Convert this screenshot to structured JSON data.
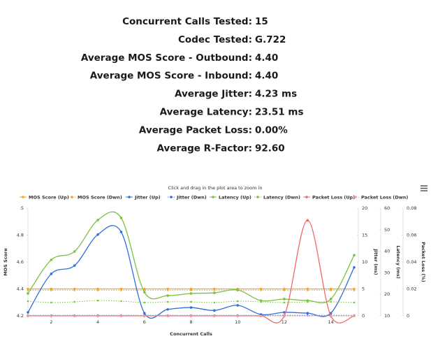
{
  "summary": [
    {
      "label": "Concurrent Calls Tested:",
      "value": "15"
    },
    {
      "label": "Codec Tested:",
      "value": "G.722"
    },
    {
      "label": "Average MOS Score - Outbound:",
      "value": "4.40"
    },
    {
      "label": "Average MOS Score - Inbound:",
      "value": "4.40"
    },
    {
      "label": "Average Jitter:",
      "value": "4.23 ms"
    },
    {
      "label": "Average Latency:",
      "value": "23.51 ms"
    },
    {
      "label": "Average Packet Loss:",
      "value": "0.00%"
    },
    {
      "label": "Average R-Factor:",
      "value": "92.60"
    }
  ],
  "chart_data": {
    "type": "line",
    "subtitle": "Click and drag in the plot area to zoom in",
    "xlabel": "Concurrent Calls",
    "x": [
      1,
      2,
      3,
      4,
      5,
      6,
      7,
      8,
      9,
      10,
      11,
      12,
      13,
      14,
      15
    ],
    "xlim": [
      1,
      15
    ],
    "xticks": [
      2,
      4,
      6,
      8,
      10,
      12,
      14
    ],
    "ylabel": "MOS Score",
    "ylim": [
      4.2,
      5
    ],
    "yticks": [
      4.2,
      4.4,
      4.6,
      4.8,
      5
    ],
    "y2label": "Jitter (ms)",
    "y2lim": [
      0,
      20
    ],
    "y2ticks": [
      0,
      5,
      10,
      15,
      20
    ],
    "y3label": "Latency (ms)",
    "y3lim": [
      10,
      60
    ],
    "y3ticks": [
      10,
      20,
      30,
      40,
      50,
      60
    ],
    "y4label": "Packet Loss (%)",
    "y4lim": [
      0,
      0.08
    ],
    "y4ticks": [
      0,
      0.02,
      0.04,
      0.06,
      0.08
    ],
    "grid": false,
    "legend": "top",
    "series": [
      {
        "name": "MOS Score (Up)",
        "color": "#f5a623",
        "axis": "y",
        "dash": false,
        "values": [
          4.4,
          4.4,
          4.4,
          4.4,
          4.4,
          4.4,
          4.4,
          4.4,
          4.4,
          4.4,
          4.4,
          4.4,
          4.4,
          4.4,
          4.4
        ]
      },
      {
        "name": "MOS Score (Dwn)",
        "color": "#f5a623",
        "axis": "y",
        "dash": true,
        "values": [
          4.39,
          4.39,
          4.39,
          4.39,
          4.39,
          4.39,
          4.39,
          4.39,
          4.39,
          4.39,
          4.39,
          4.39,
          4.39,
          4.39,
          4.39
        ]
      },
      {
        "name": "Jitter (Up)",
        "color": "#2f6fde",
        "axis": "y2",
        "dash": false,
        "values": [
          0.65,
          7.8,
          9.35,
          15.1,
          15.6,
          0.5,
          1.2,
          1.55,
          1.0,
          1.95,
          0.25,
          0.65,
          0.5,
          0.5,
          9.0
        ]
      },
      {
        "name": "Jitter (Dwn)",
        "color": "#2f6fde",
        "axis": "y2",
        "dash": true,
        "values": [
          0.1,
          0.1,
          0.1,
          0.1,
          0.1,
          0.1,
          0.1,
          0.1,
          0.1,
          0.1,
          0.1,
          0.1,
          0.1,
          0.1,
          0.1
        ]
      },
      {
        "name": "Latency (Up)",
        "color": "#7cc242",
        "axis": "y3",
        "dash": false,
        "values": [
          20.4,
          36,
          39.9,
          54.5,
          55.5,
          21,
          19.4,
          20.4,
          20.7,
          22,
          17.1,
          17.8,
          17.1,
          17.8,
          38.2
        ]
      },
      {
        "name": "Latency (Dwn)",
        "color": "#7cc242",
        "axis": "y3",
        "dash": true,
        "values": [
          16.8,
          16.2,
          16.5,
          17.1,
          16.8,
          16.2,
          16.5,
          16.5,
          16.2,
          16.8,
          16.5,
          16.2,
          16.5,
          16.5,
          16.2
        ]
      },
      {
        "name": "Packet Loss (Up)",
        "color": "#f06a6a",
        "axis": "y4",
        "dash": false,
        "values": [
          0,
          0,
          0,
          0,
          0,
          0,
          0,
          0,
          0,
          0,
          0,
          0,
          0.071,
          0,
          0
        ]
      },
      {
        "name": "Packet Loss (Dwn)",
        "color": "#f7a0a0",
        "axis": "y4",
        "dash": true,
        "values": [
          0,
          0,
          0,
          0,
          0,
          0,
          0,
          0,
          0,
          0,
          0,
          0,
          0,
          0,
          0
        ]
      }
    ]
  }
}
